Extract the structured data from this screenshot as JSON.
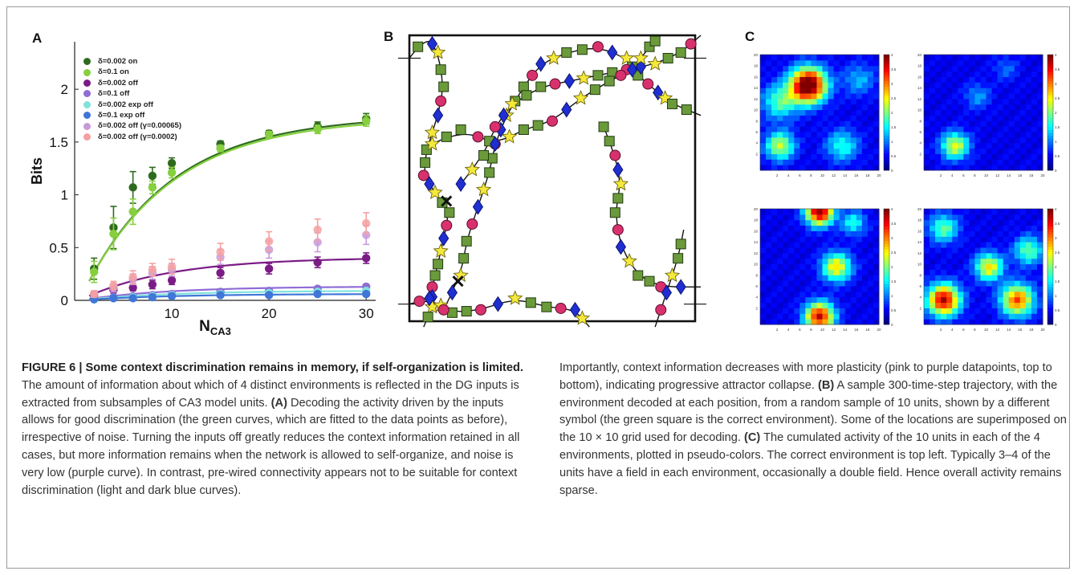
{
  "figure": {
    "panels": {
      "a": "A",
      "b": "B",
      "c": "C"
    },
    "caption": {
      "head": "FIGURE 6 | Some context discrimination remains in memory, if self-organization is limited.",
      "intro": " The amount of information about which of 4 distinct environments is reflected in the DG inputs is extracted from subsamples of CA3 model units. ",
      "ref_a": "(A)",
      "text_a": " Decoding the activity driven by the inputs allows for good discrimination (the green curves, which are fitted to the data points as before), irrespective of noise. Turning the inputs off greatly reduces the context information retained in all cases, but more information remains when the network is allowed to self-organize, and noise is very low (purple curve). In contrast, pre-wired connectivity appears not to be suitable for context discrimination (light and dark blue curves). ",
      "text_a2": "Importantly, context information decreases with more plasticity (pink to purple datapoints, top to bottom), indicating progressive attractor collapse. ",
      "ref_b": "(B)",
      "text_b": " A sample 300-time-step trajectory, with the environment decoded at each position, from a random sample of 10 units, shown by a different symbol (the green square is the correct environment). Some of the locations are superimposed on the 10 × 10 grid used for decoding. ",
      "ref_c": "(C)",
      "text_c": " The cumulated activity of the 10 units in each of the 4 environments, plotted in pseudo-colors. The correct environment is top left. Typically 3–4 of the units have a field in each environment, occasionally a double field. Hence overall activity remains sparse."
    }
  },
  "chart_data": [
    {
      "type": "scatter",
      "panel": "A",
      "xlabel": "N",
      "xlabel_sub": "CA3",
      "ylabel": "Bits",
      "xlim": [
        0,
        31
      ],
      "ylim": [
        0,
        2.45
      ],
      "xticks": [
        "10",
        "20",
        "30"
      ],
      "yticks": [
        "0",
        "0.5",
        "1",
        "1.5",
        "2"
      ],
      "x": [
        2,
        4,
        6,
        8,
        10,
        15,
        20,
        25,
        30
      ],
      "series": [
        {
          "name": "δ=0.002  on",
          "color": "#2e6b1e",
          "values": [
            0.3,
            0.69,
            1.07,
            1.18,
            1.3,
            1.48,
            1.58,
            1.65,
            1.72
          ],
          "err": [
            0.1,
            0.2,
            0.15,
            0.08,
            0.05,
            0.03,
            0.03,
            0.04,
            0.05
          ],
          "fit": true
        },
        {
          "name": "δ=0.1   on",
          "color": "#86cf3f",
          "values": [
            0.27,
            0.63,
            0.84,
            1.07,
            1.21,
            1.44,
            1.57,
            1.62,
            1.7
          ],
          "err": [
            0.1,
            0.15,
            0.12,
            0.06,
            0.05,
            0.03,
            0.03,
            0.04,
            0.05
          ],
          "fit": true
        },
        {
          "name": "δ=0.002  off",
          "color": "#7b1c86",
          "values": [
            0.05,
            0.1,
            0.12,
            0.15,
            0.19,
            0.26,
            0.3,
            0.36,
            0.4
          ],
          "err": [
            0.02,
            0.03,
            0.03,
            0.04,
            0.04,
            0.05,
            0.05,
            0.05,
            0.05
          ],
          "fit": true
        },
        {
          "name": "δ=0.1     off",
          "color": "#8f6cd6",
          "values": [
            0.02,
            0.03,
            0.04,
            0.05,
            0.06,
            0.08,
            0.09,
            0.11,
            0.13
          ],
          "err": [
            0.01,
            0.01,
            0.01,
            0.01,
            0.01,
            0.01,
            0.02,
            0.02,
            0.02
          ],
          "fit": true
        },
        {
          "name": "δ=0.002  exp off",
          "color": "#7fe3dc",
          "values": [
            0.01,
            0.02,
            0.03,
            0.04,
            0.05,
            0.06,
            0.07,
            0.08,
            0.09
          ],
          "err": [
            0.01,
            0.01,
            0.01,
            0.01,
            0.01,
            0.01,
            0.01,
            0.01,
            0.01
          ],
          "fit": true
        },
        {
          "name": "δ=0.1  exp off",
          "color": "#3f76d8",
          "values": [
            0.01,
            0.02,
            0.02,
            0.03,
            0.04,
            0.05,
            0.05,
            0.06,
            0.06
          ],
          "err": [
            0.01,
            0.01,
            0.01,
            0.01,
            0.01,
            0.01,
            0.01,
            0.01,
            0.01
          ],
          "fit": true
        },
        {
          "name": "δ=0.002 off (γ=0.00065)",
          "color": "#c89ad9",
          "values": [
            0.06,
            0.12,
            0.2,
            0.26,
            0.29,
            0.41,
            0.48,
            0.55,
            0.62
          ],
          "err": [
            0.03,
            0.04,
            0.05,
            0.06,
            0.06,
            0.07,
            0.08,
            0.09,
            0.09
          ],
          "fit": false
        },
        {
          "name": "δ=0.002 off (γ=0.0002)",
          "color": "#f4a1a1",
          "values": [
            0.06,
            0.14,
            0.22,
            0.29,
            0.32,
            0.46,
            0.56,
            0.67,
            0.73
          ],
          "err": [
            0.03,
            0.04,
            0.06,
            0.06,
            0.07,
            0.08,
            0.09,
            0.1,
            0.1
          ],
          "fit": false
        }
      ]
    },
    {
      "type": "heatmap",
      "panel": "C",
      "grid": 21,
      "colorbar_ticks": [
        "0",
        "0.5",
        "1",
        "1.5",
        "2",
        "2.5",
        "3",
        "3.5",
        "4"
      ],
      "axis_ticks": [
        "2",
        "4",
        "6",
        "8",
        "10",
        "12",
        "14",
        "16",
        "18",
        "20"
      ],
      "blobs": [
        [
          {
            "x": 8,
            "y": 15,
            "s": 2.2,
            "a": 4.2
          },
          {
            "x": 3,
            "y": 4,
            "s": 1.8,
            "a": 1.9
          },
          {
            "x": 14,
            "y": 4,
            "s": 2,
            "a": 1.2
          },
          {
            "x": 3,
            "y": 12,
            "s": 2.2,
            "a": 1.4
          },
          {
            "x": 17,
            "y": 16,
            "s": 2,
            "a": 0.8
          }
        ],
        [
          {
            "x": 5,
            "y": 4,
            "s": 1.7,
            "a": 2.0
          },
          {
            "x": 9,
            "y": 13,
            "s": 1.6,
            "a": 0.7
          },
          {
            "x": 14,
            "y": 18,
            "s": 1.5,
            "a": 0.5
          }
        ],
        [
          {
            "x": 10,
            "y": 20,
            "s": 1.7,
            "a": 3.6
          },
          {
            "x": 13,
            "y": 10,
            "s": 1.8,
            "a": 2.2
          },
          {
            "x": 10,
            "y": 1,
            "s": 1.8,
            "a": 3.3
          },
          {
            "x": 16,
            "y": 18,
            "s": 1.5,
            "a": 1.2
          }
        ],
        [
          {
            "x": 11,
            "y": 10,
            "s": 1.7,
            "a": 2.2
          },
          {
            "x": 18,
            "y": 13,
            "s": 1.8,
            "a": 1.5
          },
          {
            "x": 3,
            "y": 4,
            "s": 2,
            "a": 3.4
          },
          {
            "x": 16,
            "y": 4,
            "s": 2,
            "a": 2.8
          },
          {
            "x": 3,
            "y": 17,
            "s": 1.8,
            "a": 1.5
          }
        ]
      ]
    }
  ],
  "diagram_b": {
    "legend_note": "green square = correct environment"
  }
}
